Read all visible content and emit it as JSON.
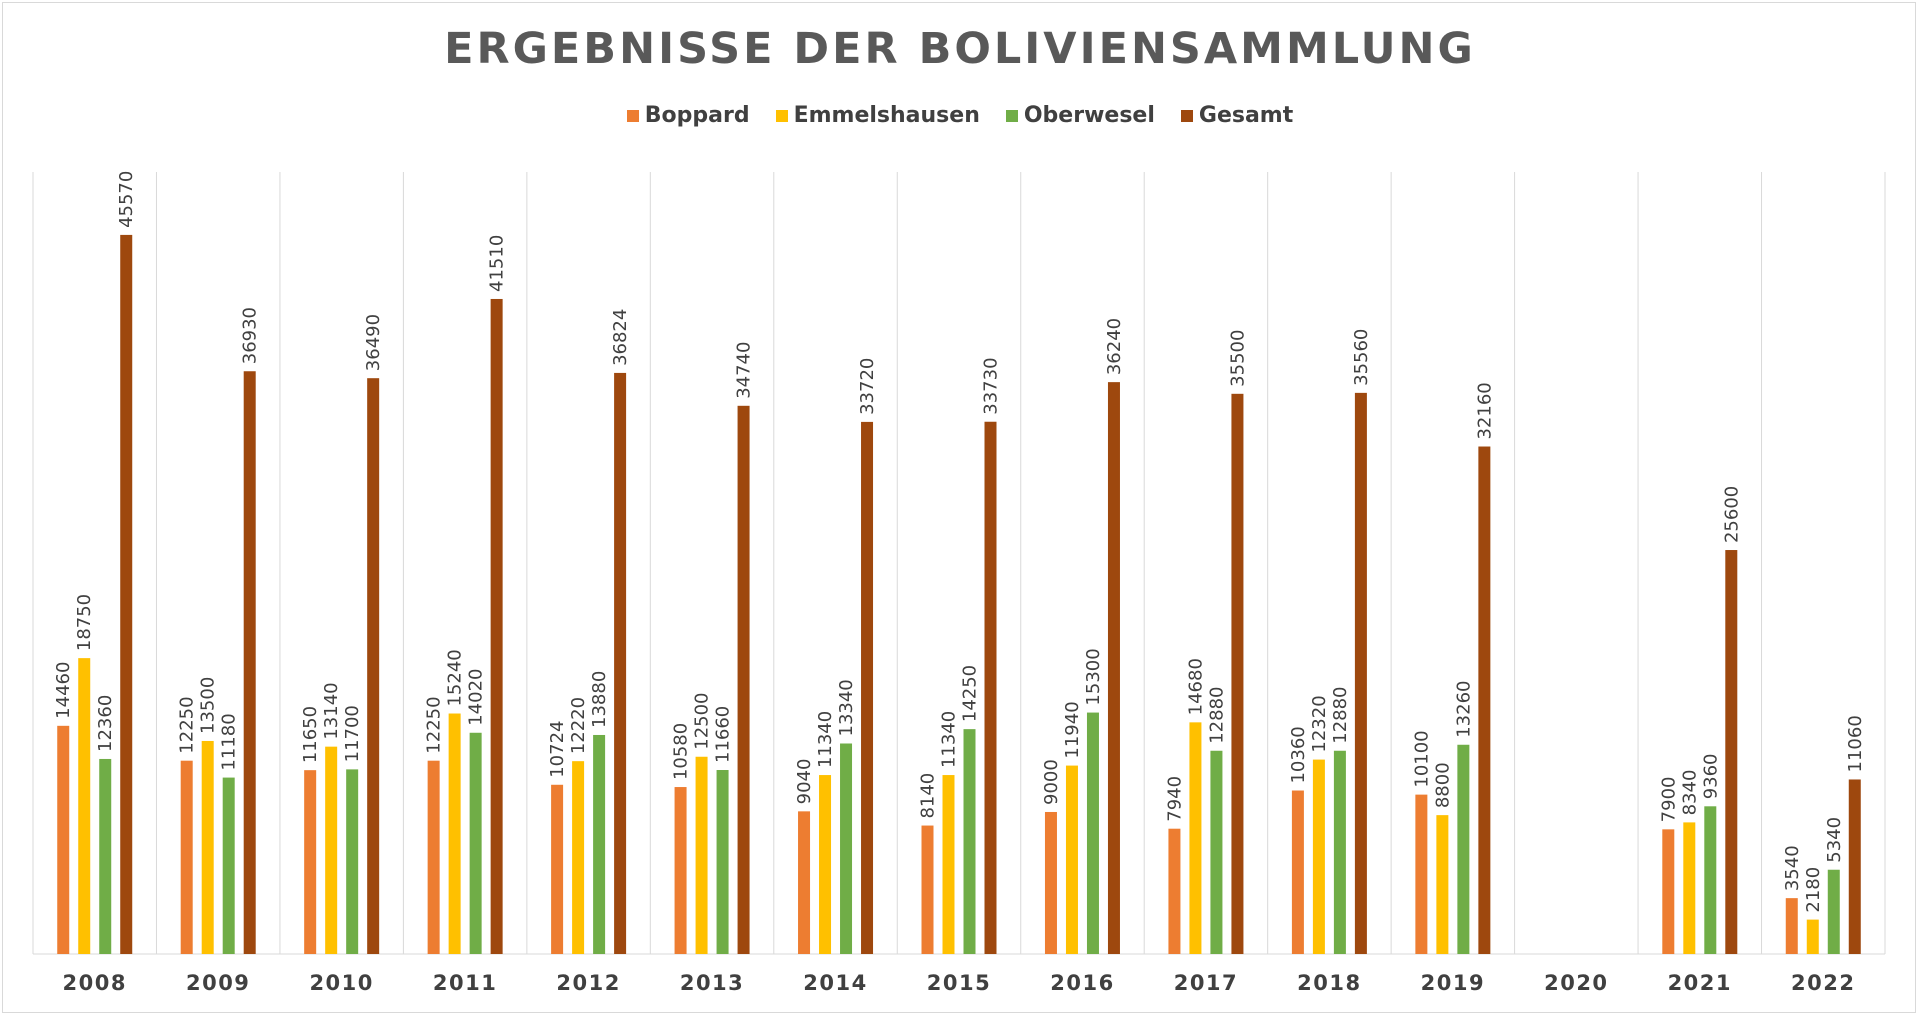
{
  "chart_data": {
    "type": "bar",
    "title": "ERGEBNISSE DER BOLIVIENSAMMLUNG",
    "categories": [
      "2008",
      "2009",
      "2010",
      "2011",
      "2012",
      "2013",
      "2014",
      "2015",
      "2016",
      "2017",
      "2018",
      "2019",
      "2020",
      "2021",
      "2022"
    ],
    "series": [
      {
        "name": "Boppard",
        "color": "#ed7d31",
        "values": [
          14460,
          12250,
          11650,
          12250,
          10724,
          10580,
          9040,
          8140,
          9000,
          7940,
          10360,
          10100,
          null,
          7900,
          3540
        ]
      },
      {
        "name": "Emmelshausen",
        "color": "#ffc000",
        "values": [
          18750,
          13500,
          13140,
          15240,
          12220,
          12500,
          11340,
          11340,
          11940,
          14680,
          12320,
          8800,
          null,
          8340,
          2180
        ]
      },
      {
        "name": "Oberwesel",
        "color": "#70ad47",
        "values": [
          12360,
          11180,
          11700,
          14020,
          13880,
          11660,
          13340,
          14250,
          15300,
          12880,
          12880,
          13260,
          null,
          9360,
          5340
        ]
      },
      {
        "name": "Gesamt",
        "color": "#9e480e",
        "values": [
          45570,
          36930,
          36490,
          41510,
          36824,
          34740,
          33720,
          33730,
          36240,
          35500,
          35560,
          32160,
          null,
          25600,
          11060
        ]
      }
    ],
    "ylim": [
      0,
      50000
    ],
    "grid": "vertical category separators",
    "legend": "top-center",
    "data_labels": true
  }
}
